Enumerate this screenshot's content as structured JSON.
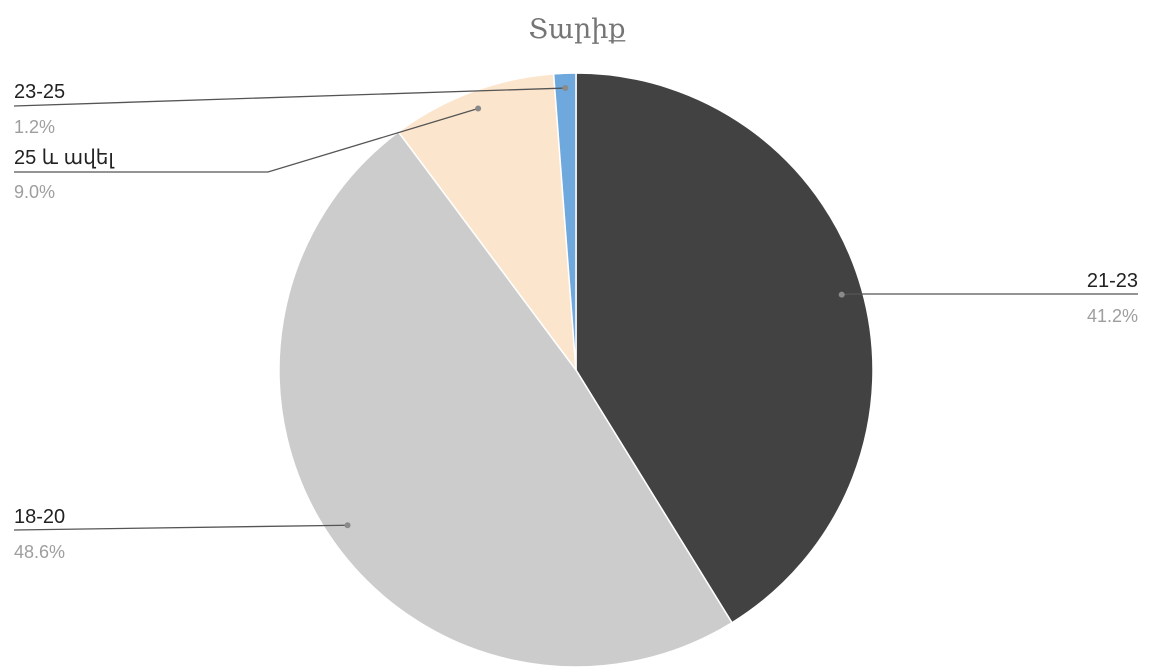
{
  "chart_data": {
    "type": "pie",
    "title": "Տարիք",
    "slices": [
      {
        "label": "21-23",
        "value": 41.2,
        "display": "41.2%",
        "color": "#424242"
      },
      {
        "label": "18-20",
        "value": 48.6,
        "display": "48.6%",
        "color": "#cccccc"
      },
      {
        "label": "25 և ավել",
        "value": 9.0,
        "display": "9.0%",
        "color": "#fce5cd"
      },
      {
        "label": "23-25",
        "value": 1.2,
        "display": "1.2%",
        "color": "#6fa8dc"
      }
    ],
    "start_angle_deg": 0,
    "direction": "clockwise",
    "legend": "none"
  }
}
